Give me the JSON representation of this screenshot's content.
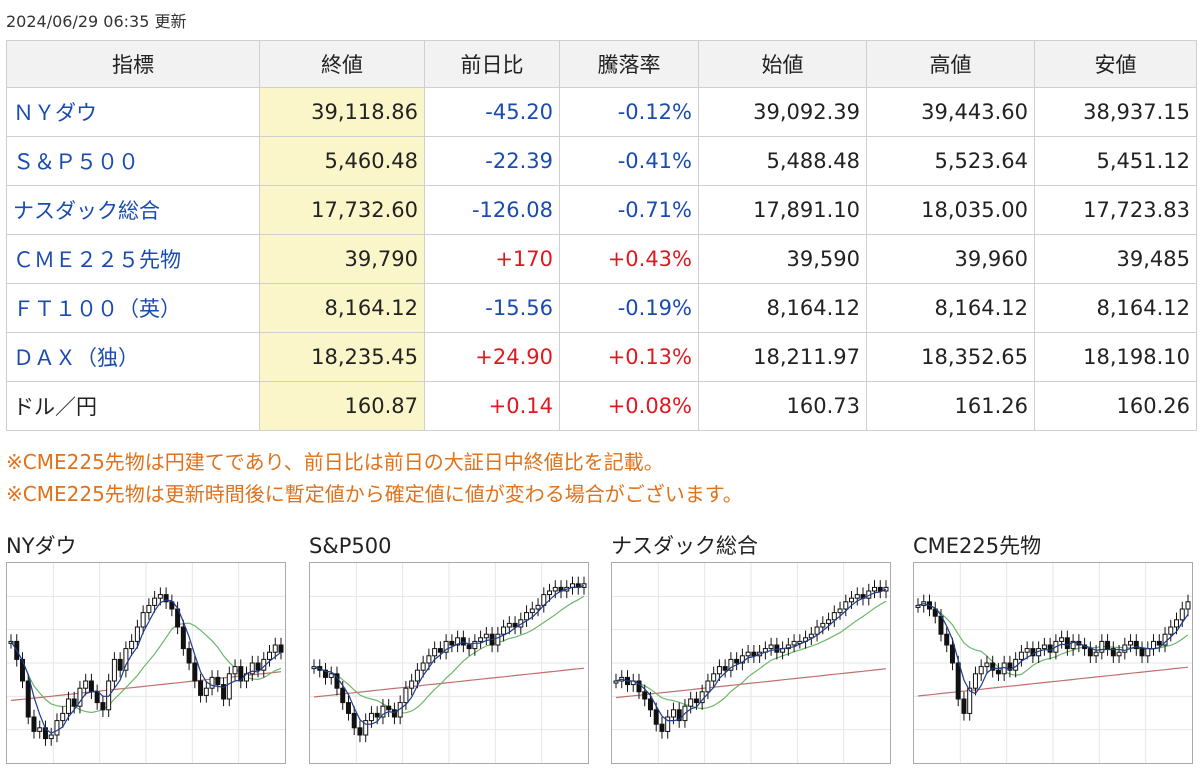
{
  "updated": "2024/06/29 06:35 更新",
  "table": {
    "headers": [
      "指標",
      "終値",
      "前日比",
      "騰落率",
      "始値",
      "高値",
      "安値"
    ],
    "rows": [
      {
        "name": "ＮＹダウ",
        "link": true,
        "close": "39,118.86",
        "change": "-45.20",
        "rate": "-0.12%",
        "open": "39,092.39",
        "high": "39,443.60",
        "low": "38,937.15",
        "dir": "neg"
      },
      {
        "name": "Ｓ＆Ｐ５００",
        "link": true,
        "close": "5,460.48",
        "change": "-22.39",
        "rate": "-0.41%",
        "open": "5,488.48",
        "high": "5,523.64",
        "low": "5,451.12",
        "dir": "neg"
      },
      {
        "name": "ナスダック総合",
        "link": true,
        "close": "17,732.60",
        "change": "-126.08",
        "rate": "-0.71%",
        "open": "17,891.10",
        "high": "18,035.00",
        "low": "17,723.83",
        "dir": "neg"
      },
      {
        "name": "ＣＭＥ２２５先物",
        "link": true,
        "close": "39,790",
        "change": "+170",
        "rate": "+0.43%",
        "open": "39,590",
        "high": "39,960",
        "low": "39,485",
        "dir": "pos"
      },
      {
        "name": "ＦＴ１００（英）",
        "link": true,
        "close": "8,164.12",
        "change": "-15.56",
        "rate": "-0.19%",
        "open": "8,164.12",
        "high": "8,164.12",
        "low": "8,164.12",
        "dir": "neg"
      },
      {
        "name": "ＤＡＸ（独）",
        "link": true,
        "close": "18,235.45",
        "change": "+24.90",
        "rate": "+0.13%",
        "open": "18,211.97",
        "high": "18,352.65",
        "low": "18,198.10",
        "dir": "pos"
      },
      {
        "name": "ドル／円",
        "link": false,
        "close": "160.87",
        "change": "+0.14",
        "rate": "+0.08%",
        "open": "160.73",
        "high": "161.26",
        "low": "160.26",
        "dir": "pos"
      }
    ]
  },
  "notes": [
    "※CME225先物は円建てであり、前日比は前日の大証日中終値比を記載。",
    "※CME225先物は更新時間後に暫定値から確定値に値が変わる場合がございます。"
  ],
  "colors": {
    "negative": "#1a4bb0",
    "positive": "#e0191f",
    "note": "#e0721a",
    "close_bg": "#fbf6c9",
    "ma_short": "#1f3b8a",
    "ma_mid": "#6cb86c",
    "ma_long": "#c07070"
  },
  "charts": [
    {
      "title": "NYダウ",
      "closes": [
        0.62,
        0.52,
        0.4,
        0.2,
        0.12,
        0.14,
        0.08,
        0.1,
        0.18,
        0.22,
        0.3,
        0.26,
        0.36,
        0.4,
        0.34,
        0.28,
        0.24,
        0.4,
        0.52,
        0.46,
        0.58,
        0.62,
        0.7,
        0.78,
        0.82,
        0.86,
        0.88,
        0.84,
        0.8,
        0.7,
        0.58,
        0.5,
        0.4,
        0.32,
        0.36,
        0.42,
        0.38,
        0.3,
        0.44,
        0.48,
        0.4,
        0.44,
        0.5,
        0.46,
        0.52,
        0.56,
        0.6,
        0.56
      ]
    },
    {
      "title": "S&P500",
      "closes": [
        0.48,
        0.46,
        0.42,
        0.44,
        0.36,
        0.28,
        0.22,
        0.14,
        0.1,
        0.18,
        0.22,
        0.2,
        0.26,
        0.24,
        0.2,
        0.28,
        0.36,
        0.4,
        0.46,
        0.5,
        0.54,
        0.58,
        0.56,
        0.62,
        0.6,
        0.64,
        0.6,
        0.58,
        0.62,
        0.64,
        0.66,
        0.6,
        0.66,
        0.7,
        0.72,
        0.7,
        0.74,
        0.78,
        0.8,
        0.82,
        0.88,
        0.9,
        0.92,
        0.9,
        0.92,
        0.94,
        0.92,
        0.94
      ]
    },
    {
      "title": "ナスダック総合",
      "closes": [
        0.4,
        0.42,
        0.38,
        0.4,
        0.34,
        0.3,
        0.24,
        0.16,
        0.12,
        0.2,
        0.24,
        0.18,
        0.26,
        0.3,
        0.28,
        0.34,
        0.4,
        0.44,
        0.48,
        0.46,
        0.52,
        0.5,
        0.54,
        0.56,
        0.54,
        0.56,
        0.58,
        0.6,
        0.56,
        0.58,
        0.6,
        0.62,
        0.62,
        0.64,
        0.66,
        0.7,
        0.72,
        0.74,
        0.78,
        0.8,
        0.84,
        0.86,
        0.88,
        0.86,
        0.9,
        0.92,
        0.9,
        0.92
      ]
    },
    {
      "title": "CME225先物",
      "closes": [
        0.82,
        0.84,
        0.8,
        0.76,
        0.66,
        0.6,
        0.5,
        0.3,
        0.22,
        0.36,
        0.44,
        0.48,
        0.5,
        0.46,
        0.44,
        0.5,
        0.46,
        0.52,
        0.56,
        0.58,
        0.54,
        0.58,
        0.6,
        0.56,
        0.62,
        0.64,
        0.58,
        0.62,
        0.6,
        0.58,
        0.54,
        0.56,
        0.62,
        0.58,
        0.54,
        0.56,
        0.6,
        0.62,
        0.58,
        0.54,
        0.58,
        0.62,
        0.6,
        0.66,
        0.7,
        0.74,
        0.8,
        0.84
      ]
    }
  ]
}
